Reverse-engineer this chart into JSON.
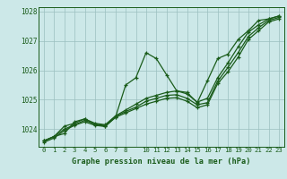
{
  "title": "Graphe pression niveau de la mer (hPa)",
  "hours": [
    0,
    1,
    2,
    3,
    4,
    5,
    6,
    7,
    8,
    9,
    10,
    11,
    12,
    13,
    14,
    15,
    16,
    17,
    18,
    19,
    20,
    21,
    22,
    23
  ],
  "xtick_labels": [
    "0",
    "1",
    "2",
    "3",
    "4",
    "5",
    "6",
    "7",
    "8",
    "",
    "10",
    "11",
    "12",
    "13",
    "14",
    "15",
    "16",
    "17",
    "18",
    "19",
    "20",
    "21",
    "22",
    "23"
  ],
  "ylim": [
    1023.4,
    1028.15
  ],
  "yticks": [
    1024,
    1025,
    1026,
    1027,
    1028
  ],
  "bg_color": "#cce8e8",
  "line_color": "#1a5c1a",
  "series": [
    [
      1023.6,
      1023.75,
      1023.85,
      1024.25,
      1024.35,
      1024.15,
      1024.1,
      1024.4,
      1025.5,
      1025.75,
      1026.6,
      1026.4,
      1025.85,
      1025.3,
      1025.25,
      1024.9,
      1025.65,
      1026.4,
      1026.55,
      1027.05,
      1027.35,
      1027.7,
      1027.75,
      1027.85
    ],
    [
      1023.6,
      1023.75,
      1024.1,
      1024.2,
      1024.35,
      1024.2,
      1024.15,
      1024.45,
      1024.65,
      1024.85,
      1025.05,
      1025.15,
      1025.25,
      1025.3,
      1025.2,
      1024.92,
      1025.05,
      1025.75,
      1026.25,
      1026.8,
      1027.3,
      1027.55,
      1027.75,
      1027.85
    ],
    [
      1023.6,
      1023.75,
      1024.0,
      1024.15,
      1024.3,
      1024.17,
      1024.13,
      1024.43,
      1024.6,
      1024.75,
      1024.95,
      1025.05,
      1025.15,
      1025.17,
      1025.05,
      1024.83,
      1024.9,
      1025.63,
      1026.1,
      1026.6,
      1027.15,
      1027.45,
      1027.7,
      1027.8
    ],
    [
      1023.55,
      1023.7,
      1023.95,
      1024.13,
      1024.25,
      1024.13,
      1024.09,
      1024.4,
      1024.55,
      1024.7,
      1024.85,
      1024.95,
      1025.05,
      1025.07,
      1024.95,
      1024.73,
      1024.83,
      1025.55,
      1025.95,
      1026.45,
      1027.05,
      1027.35,
      1027.65,
      1027.75
    ]
  ]
}
